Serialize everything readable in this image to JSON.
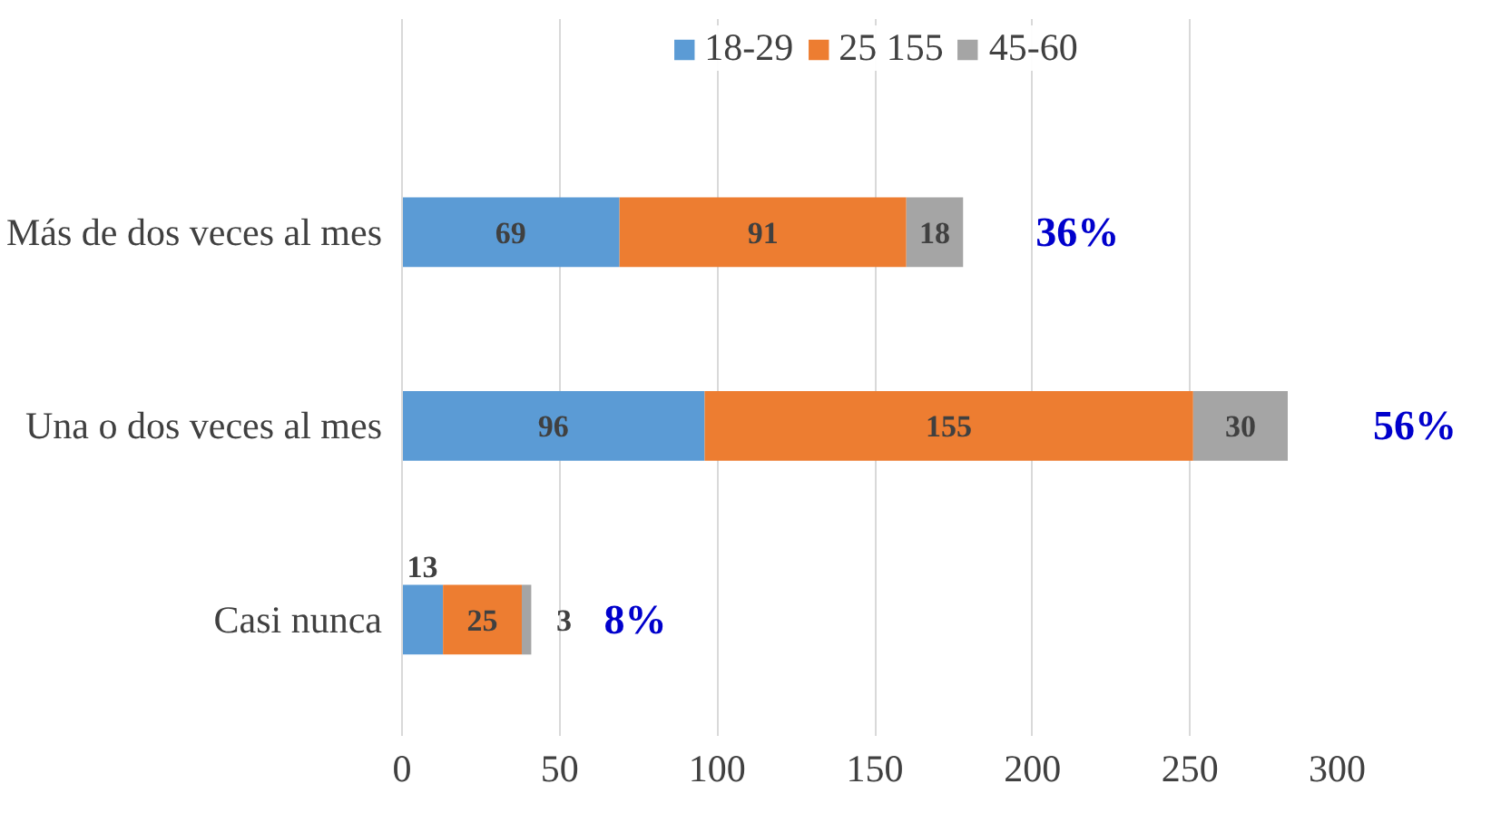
{
  "chart_data": {
    "type": "bar",
    "orientation": "horizontal",
    "stacked": true,
    "categories": [
      "Más de dos veces al mes",
      "Una o dos veces al mes",
      "Casi nunca"
    ],
    "series": [
      {
        "name": "18-29",
        "color": "#5b9bd5",
        "values": [
          69,
          96,
          13
        ]
      },
      {
        "name": "25 155",
        "color": "#ed7d31",
        "values": [
          91,
          155,
          25
        ]
      },
      {
        "name": "45-60",
        "color": "#a5a5a5",
        "values": [
          18,
          30,
          3
        ]
      }
    ],
    "xlim": [
      0,
      300
    ],
    "xticks": [
      0,
      50,
      100,
      150,
      200,
      250,
      300
    ],
    "grid": "x",
    "legend": "top",
    "data_labels": true,
    "annotations": [
      "36%",
      "56%",
      "8%"
    ]
  }
}
